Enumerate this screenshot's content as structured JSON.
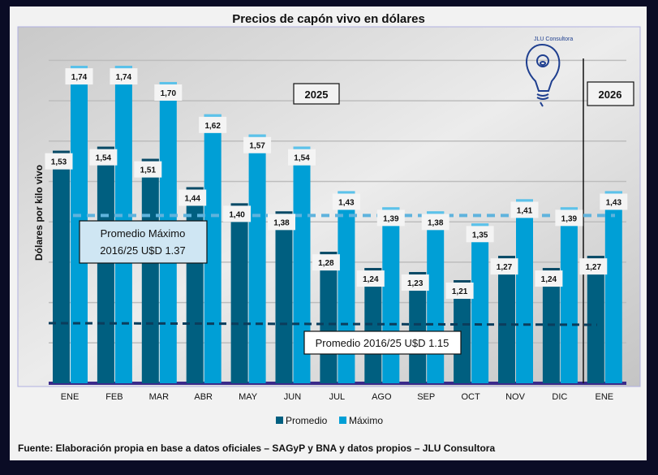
{
  "chart_data": {
    "type": "bar",
    "title": "Precios de capón vivo en dólares",
    "ylabel": "Dólares por kilo vivo",
    "xlabel": "",
    "ylim": [
      0.955,
      1.8
    ],
    "grid": true,
    "categories": [
      "ENE",
      "FEB",
      "MAR",
      "ABR",
      "MAY",
      "JUN",
      "JUL",
      "AGO",
      "SEP",
      "OCT",
      "NOV",
      "DIC",
      "ENE"
    ],
    "series": [
      {
        "name": "Promedio",
        "color": "#005f80",
        "values": [
          1.53,
          1.54,
          1.51,
          1.44,
          1.4,
          1.38,
          1.28,
          1.24,
          1.23,
          1.21,
          1.27,
          1.24,
          1.27
        ]
      },
      {
        "name": "Máximo",
        "color": "#009fd6",
        "values": [
          1.74,
          1.74,
          1.7,
          1.62,
          1.57,
          1.54,
          1.43,
          1.39,
          1.38,
          1.35,
          1.41,
          1.39,
          1.43
        ]
      }
    ],
    "data_labels": [
      "1,53",
      "1,54",
      "1,51",
      "1,44",
      "1,40",
      "1,38",
      "1,28",
      "1,24",
      "1,23",
      "1,21",
      "1,27",
      "1,24",
      "1,27",
      "1,74",
      "1,74",
      "1,70",
      "1,62",
      "1,57",
      "1,54",
      "1,43",
      "1,39",
      "1,38",
      "1,35",
      "1,41",
      "1,39",
      "1,43"
    ],
    "reference_lines": [
      {
        "name": "Promedio Máximo",
        "value": 1.37,
        "label_line1": "Promedio Máximo",
        "label_line2": "2016/25 U$D 1.37",
        "color": "#5fb3dd"
      },
      {
        "name": "Promedio",
        "value": 1.15,
        "label": "Promedio 2016/25 U$D 1.15",
        "color": "#0b3d5c"
      }
    ],
    "annotations": [
      "2025",
      "2026"
    ],
    "legend_position": "bottom",
    "logo_text": "JLU Consultora",
    "source": "Fuente: Elaboración propia en base a datos oficiales – SAGyP y BNA y datos propios – JLU Consultora"
  }
}
